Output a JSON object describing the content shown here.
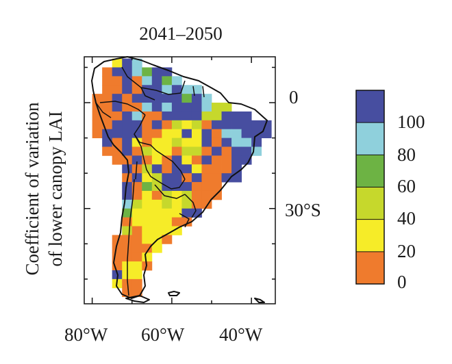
{
  "title": "2041–2050",
  "ylabel_lines": [
    "Coefficient of variation",
    "of lower canopy LAI"
  ],
  "lon_ticks": [
    "80°W",
    "60°W",
    "40°W"
  ],
  "lat_ticks": [
    "0",
    "30°S"
  ],
  "colorbar": {
    "labels": [
      "100",
      "80",
      "60",
      "40",
      "20",
      "0"
    ],
    "bins": [
      {
        "range": "0-20",
        "color": "#ef7b2d"
      },
      {
        "range": "20-40",
        "color": "#f6ec28"
      },
      {
        "range": "40-60",
        "color": "#c6d82c"
      },
      {
        "range": "60-80",
        "color": "#6db344"
      },
      {
        "range": "80-100",
        "color": "#8fd0dc"
      },
      {
        "range": ">100",
        "color": "#474ea0"
      }
    ]
  },
  "map_extent": {
    "lon": [
      -82,
      -34
    ],
    "lat": [
      -57,
      13
    ]
  },
  "grid_resolution_deg": 2.5,
  "grid_cells": [
    {
      "lat": 11.25,
      "lon": -73.75,
      "v": 1
    },
    {
      "lat": 11.25,
      "lon": -71.25,
      "v": 5
    },
    {
      "lat": 11.25,
      "lon": -68.75,
      "v": 4
    },
    {
      "lat": 8.75,
      "lon": -76.25,
      "v": 0
    },
    {
      "lat": 8.75,
      "lon": -73.75,
      "v": 5
    },
    {
      "lat": 8.75,
      "lon": -71.25,
      "v": 5
    },
    {
      "lat": 8.75,
      "lon": -68.75,
      "v": 4
    },
    {
      "lat": 8.75,
      "lon": -66.25,
      "v": 3
    },
    {
      "lat": 8.75,
      "lon": -63.75,
      "v": 5
    },
    {
      "lat": 8.75,
      "lon": -61.25,
      "v": 5
    },
    {
      "lat": 6.25,
      "lon": -76.25,
      "v": 0
    },
    {
      "lat": 6.25,
      "lon": -73.75,
      "v": 0
    },
    {
      "lat": 6.25,
      "lon": -71.25,
      "v": 5
    },
    {
      "lat": 6.25,
      "lon": -68.75,
      "v": 0
    },
    {
      "lat": 6.25,
      "lon": -66.25,
      "v": 4
    },
    {
      "lat": 6.25,
      "lon": -63.75,
      "v": 5
    },
    {
      "lat": 6.25,
      "lon": -61.25,
      "v": 3
    },
    {
      "lat": 6.25,
      "lon": -58.75,
      "v": 4
    },
    {
      "lat": 3.75,
      "lon": -76.25,
      "v": 0
    },
    {
      "lat": 3.75,
      "lon": -73.75,
      "v": 0
    },
    {
      "lat": 3.75,
      "lon": -71.25,
      "v": 5
    },
    {
      "lat": 3.75,
      "lon": -68.75,
      "v": 0
    },
    {
      "lat": 3.75,
      "lon": -66.25,
      "v": 5
    },
    {
      "lat": 3.75,
      "lon": -63.75,
      "v": 5
    },
    {
      "lat": 3.75,
      "lon": -61.25,
      "v": 4
    },
    {
      "lat": 3.75,
      "lon": -58.75,
      "v": 5
    },
    {
      "lat": 3.75,
      "lon": -56.25,
      "v": 4
    },
    {
      "lat": 3.75,
      "lon": -53.75,
      "v": 4
    },
    {
      "lat": 1.25,
      "lon": -78.75,
      "v": 0
    },
    {
      "lat": 1.25,
      "lon": -76.25,
      "v": 0
    },
    {
      "lat": 1.25,
      "lon": -73.75,
      "v": 5
    },
    {
      "lat": 1.25,
      "lon": -71.25,
      "v": 0
    },
    {
      "lat": 1.25,
      "lon": -68.75,
      "v": 5
    },
    {
      "lat": 1.25,
      "lon": -66.25,
      "v": 5
    },
    {
      "lat": 1.25,
      "lon": -63.75,
      "v": 5
    },
    {
      "lat": 1.25,
      "lon": -61.25,
      "v": 5
    },
    {
      "lat": 1.25,
      "lon": -58.75,
      "v": 5
    },
    {
      "lat": 1.25,
      "lon": -56.25,
      "v": 3
    },
    {
      "lat": 1.25,
      "lon": -53.75,
      "v": 5
    },
    {
      "lat": 1.25,
      "lon": -51.25,
      "v": 4
    },
    {
      "lat": -1.25,
      "lon": -78.75,
      "v": 0
    },
    {
      "lat": -1.25,
      "lon": -76.25,
      "v": 0
    },
    {
      "lat": -1.25,
      "lon": -73.75,
      "v": 5
    },
    {
      "lat": -1.25,
      "lon": -71.25,
      "v": 0
    },
    {
      "lat": -1.25,
      "lon": -68.75,
      "v": 0
    },
    {
      "lat": -1.25,
      "lon": -66.25,
      "v": 4
    },
    {
      "lat": -1.25,
      "lon": -63.75,
      "v": 5
    },
    {
      "lat": -1.25,
      "lon": -61.25,
      "v": 4
    },
    {
      "lat": -1.25,
      "lon": -58.75,
      "v": 5
    },
    {
      "lat": -1.25,
      "lon": -56.25,
      "v": 5
    },
    {
      "lat": -1.25,
      "lon": -53.75,
      "v": 5
    },
    {
      "lat": -1.25,
      "lon": -51.25,
      "v": 4
    },
    {
      "lat": -1.25,
      "lon": -48.75,
      "v": 2
    },
    {
      "lat": -1.25,
      "lon": -46.25,
      "v": 2
    },
    {
      "lat": -3.75,
      "lon": -78.75,
      "v": 0
    },
    {
      "lat": -3.75,
      "lon": -76.25,
      "v": 0
    },
    {
      "lat": -3.75,
      "lon": -73.75,
      "v": 0
    },
    {
      "lat": -3.75,
      "lon": -71.25,
      "v": 5
    },
    {
      "lat": -3.75,
      "lon": -68.75,
      "v": 4
    },
    {
      "lat": -3.75,
      "lon": -66.25,
      "v": 0
    },
    {
      "lat": -3.75,
      "lon": -63.75,
      "v": 0
    },
    {
      "lat": -3.75,
      "lon": -61.25,
      "v": 5
    },
    {
      "lat": -3.75,
      "lon": -58.75,
      "v": 5
    },
    {
      "lat": -3.75,
      "lon": -56.25,
      "v": 5
    },
    {
      "lat": -3.75,
      "lon": -53.75,
      "v": 5
    },
    {
      "lat": -3.75,
      "lon": -51.25,
      "v": 2
    },
    {
      "lat": -3.75,
      "lon": -48.75,
      "v": 2
    },
    {
      "lat": -3.75,
      "lon": -46.25,
      "v": 5
    },
    {
      "lat": -3.75,
      "lon": -43.75,
      "v": 5
    },
    {
      "lat": -3.75,
      "lon": -41.25,
      "v": 5
    },
    {
      "lat": -6.25,
      "lon": -78.75,
      "v": 0
    },
    {
      "lat": -6.25,
      "lon": -76.25,
      "v": 0
    },
    {
      "lat": -6.25,
      "lon": -73.75,
      "v": 5
    },
    {
      "lat": -6.25,
      "lon": -71.25,
      "v": 5
    },
    {
      "lat": -6.25,
      "lon": -68.75,
      "v": 5
    },
    {
      "lat": -6.25,
      "lon": -66.25,
      "v": 0
    },
    {
      "lat": -6.25,
      "lon": -63.75,
      "v": 5
    },
    {
      "lat": -6.25,
      "lon": -61.25,
      "v": 0
    },
    {
      "lat": -6.25,
      "lon": -58.75,
      "v": 2
    },
    {
      "lat": -6.25,
      "lon": -56.25,
      "v": 1
    },
    {
      "lat": -6.25,
      "lon": -53.75,
      "v": 2
    },
    {
      "lat": -6.25,
      "lon": -51.25,
      "v": 0
    },
    {
      "lat": -6.25,
      "lon": -48.75,
      "v": 5
    },
    {
      "lat": -6.25,
      "lon": -46.25,
      "v": 5
    },
    {
      "lat": -6.25,
      "lon": -43.75,
      "v": 5
    },
    {
      "lat": -6.25,
      "lon": -41.25,
      "v": 5
    },
    {
      "lat": -6.25,
      "lon": -38.75,
      "v": 5
    },
    {
      "lat": -6.25,
      "lon": -36.25,
      "v": 5
    },
    {
      "lat": -8.75,
      "lon": -78.75,
      "v": 0
    },
    {
      "lat": -8.75,
      "lon": -76.25,
      "v": 5
    },
    {
      "lat": -8.75,
      "lon": -73.75,
      "v": 5
    },
    {
      "lat": -8.75,
      "lon": -71.25,
      "v": 5
    },
    {
      "lat": -8.75,
      "lon": -68.75,
      "v": 5
    },
    {
      "lat": -8.75,
      "lon": -66.25,
      "v": 0
    },
    {
      "lat": -8.75,
      "lon": -63.75,
      "v": 0
    },
    {
      "lat": -8.75,
      "lon": -61.25,
      "v": 1
    },
    {
      "lat": -8.75,
      "lon": -58.75,
      "v": 1
    },
    {
      "lat": -8.75,
      "lon": -56.25,
      "v": 5
    },
    {
      "lat": -8.75,
      "lon": -53.75,
      "v": 1
    },
    {
      "lat": -8.75,
      "lon": -51.25,
      "v": 5
    },
    {
      "lat": -8.75,
      "lon": -48.75,
      "v": 0
    },
    {
      "lat": -8.75,
      "lon": -46.25,
      "v": 4
    },
    {
      "lat": -8.75,
      "lon": -43.75,
      "v": 4
    },
    {
      "lat": -8.75,
      "lon": -41.25,
      "v": 5
    },
    {
      "lat": -8.75,
      "lon": -38.75,
      "v": 5
    },
    {
      "lat": -8.75,
      "lon": -36.25,
      "v": 5
    },
    {
      "lat": -11.25,
      "lon": -76.25,
      "v": 5
    },
    {
      "lat": -11.25,
      "lon": -73.75,
      "v": 0
    },
    {
      "lat": -11.25,
      "lon": -71.25,
      "v": 5
    },
    {
      "lat": -11.25,
      "lon": -68.75,
      "v": 1
    },
    {
      "lat": -11.25,
      "lon": -66.25,
      "v": 0
    },
    {
      "lat": -11.25,
      "lon": -63.75,
      "v": 1
    },
    {
      "lat": -11.25,
      "lon": -61.25,
      "v": 1
    },
    {
      "lat": -11.25,
      "lon": -58.75,
      "v": 2
    },
    {
      "lat": -11.25,
      "lon": -56.25,
      "v": 1
    },
    {
      "lat": -11.25,
      "lon": -53.75,
      "v": 1
    },
    {
      "lat": -11.25,
      "lon": -51.25,
      "v": 5
    },
    {
      "lat": -11.25,
      "lon": -48.75,
      "v": 0
    },
    {
      "lat": -11.25,
      "lon": -46.25,
      "v": 5
    },
    {
      "lat": -11.25,
      "lon": -43.75,
      "v": 4
    },
    {
      "lat": -11.25,
      "lon": -41.25,
      "v": 4
    },
    {
      "lat": -11.25,
      "lon": -38.75,
      "v": 5
    },
    {
      "lat": -13.75,
      "lon": -76.25,
      "v": 0
    },
    {
      "lat": -13.75,
      "lon": -73.75,
      "v": 0
    },
    {
      "lat": -13.75,
      "lon": -71.25,
      "v": 5
    },
    {
      "lat": -13.75,
      "lon": -68.75,
      "v": 0
    },
    {
      "lat": -13.75,
      "lon": -66.25,
      "v": 2
    },
    {
      "lat": -13.75,
      "lon": -63.75,
      "v": 1
    },
    {
      "lat": -13.75,
      "lon": -61.25,
      "v": 1
    },
    {
      "lat": -13.75,
      "lon": -58.75,
      "v": 0
    },
    {
      "lat": -13.75,
      "lon": -56.25,
      "v": 2
    },
    {
      "lat": -13.75,
      "lon": -53.75,
      "v": 2
    },
    {
      "lat": -13.75,
      "lon": -51.25,
      "v": 0
    },
    {
      "lat": -13.75,
      "lon": -48.75,
      "v": 5
    },
    {
      "lat": -13.75,
      "lon": -46.25,
      "v": 0
    },
    {
      "lat": -13.75,
      "lon": -43.75,
      "v": 5
    },
    {
      "lat": -13.75,
      "lon": -41.25,
      "v": 5
    },
    {
      "lat": -13.75,
      "lon": -38.75,
      "v": 4
    },
    {
      "lat": -16.25,
      "lon": -73.75,
      "v": 0
    },
    {
      "lat": -16.25,
      "lon": -71.25,
      "v": 0
    },
    {
      "lat": -16.25,
      "lon": -68.75,
      "v": 5
    },
    {
      "lat": -16.25,
      "lon": -66.25,
      "v": 0
    },
    {
      "lat": -16.25,
      "lon": -63.75,
      "v": 1
    },
    {
      "lat": -16.25,
      "lon": -61.25,
      "v": 0
    },
    {
      "lat": -16.25,
      "lon": -58.75,
      "v": 5
    },
    {
      "lat": -16.25,
      "lon": -56.25,
      "v": 1
    },
    {
      "lat": -16.25,
      "lon": -53.75,
      "v": 0
    },
    {
      "lat": -16.25,
      "lon": -51.25,
      "v": 5
    },
    {
      "lat": -16.25,
      "lon": -48.75,
      "v": 0
    },
    {
      "lat": -16.25,
      "lon": -46.25,
      "v": 0
    },
    {
      "lat": -16.25,
      "lon": -43.75,
      "v": 5
    },
    {
      "lat": -16.25,
      "lon": -41.25,
      "v": 5
    },
    {
      "lat": -18.75,
      "lon": -71.25,
      "v": 5
    },
    {
      "lat": -18.75,
      "lon": -68.75,
      "v": 0
    },
    {
      "lat": -18.75,
      "lon": -66.25,
      "v": 2
    },
    {
      "lat": -18.75,
      "lon": -63.75,
      "v": 5
    },
    {
      "lat": -18.75,
      "lon": -61.25,
      "v": 0
    },
    {
      "lat": -18.75,
      "lon": -58.75,
      "v": 5
    },
    {
      "lat": -18.75,
      "lon": -56.25,
      "v": 5
    },
    {
      "lat": -18.75,
      "lon": -53.75,
      "v": 1
    },
    {
      "lat": -18.75,
      "lon": -51.25,
      "v": 0
    },
    {
      "lat": -18.75,
      "lon": -48.75,
      "v": 0
    },
    {
      "lat": -18.75,
      "lon": -46.25,
      "v": 0
    },
    {
      "lat": -18.75,
      "lon": -43.75,
      "v": 5
    },
    {
      "lat": -21.25,
      "lon": -71.25,
      "v": 0
    },
    {
      "lat": -21.25,
      "lon": -68.75,
      "v": 5
    },
    {
      "lat": -21.25,
      "lon": -66.25,
      "v": 1
    },
    {
      "lat": -21.25,
      "lon": -63.75,
      "v": 2
    },
    {
      "lat": -21.25,
      "lon": -61.25,
      "v": 5
    },
    {
      "lat": -21.25,
      "lon": -58.75,
      "v": 5
    },
    {
      "lat": -21.25,
      "lon": -56.25,
      "v": 0
    },
    {
      "lat": -21.25,
      "lon": -53.75,
      "v": 5
    },
    {
      "lat": -21.25,
      "lon": -51.25,
      "v": 0
    },
    {
      "lat": -21.25,
      "lon": -48.75,
      "v": 0
    },
    {
      "lat": -21.25,
      "lon": -46.25,
      "v": 5
    },
    {
      "lat": -21.25,
      "lon": -43.75,
      "v": 5
    },
    {
      "lat": -23.75,
      "lon": -71.25,
      "v": 5
    },
    {
      "lat": -23.75,
      "lon": -68.75,
      "v": 0
    },
    {
      "lat": -23.75,
      "lon": -66.25,
      "v": 3
    },
    {
      "lat": -23.75,
      "lon": -63.75,
      "v": 2
    },
    {
      "lat": -23.75,
      "lon": -61.25,
      "v": 5
    },
    {
      "lat": -23.75,
      "lon": -58.75,
      "v": 5
    },
    {
      "lat": -23.75,
      "lon": -56.25,
      "v": 5
    },
    {
      "lat": -23.75,
      "lon": -53.75,
      "v": 0
    },
    {
      "lat": -23.75,
      "lon": -51.25,
      "v": 0
    },
    {
      "lat": -23.75,
      "lon": -48.75,
      "v": 0
    },
    {
      "lat": -26.25,
      "lon": -71.25,
      "v": 5
    },
    {
      "lat": -26.25,
      "lon": -68.75,
      "v": 0
    },
    {
      "lat": -26.25,
      "lon": -66.25,
      "v": 1
    },
    {
      "lat": -26.25,
      "lon": -63.75,
      "v": 0
    },
    {
      "lat": -26.25,
      "lon": -61.25,
      "v": 2
    },
    {
      "lat": -26.25,
      "lon": -58.75,
      "v": 1
    },
    {
      "lat": -26.25,
      "lon": -56.25,
      "v": 2
    },
    {
      "lat": -26.25,
      "lon": -53.75,
      "v": 0
    },
    {
      "lat": -26.25,
      "lon": -51.25,
      "v": 0
    },
    {
      "lat": -26.25,
      "lon": -48.75,
      "v": 0
    },
    {
      "lat": -28.75,
      "lon": -71.25,
      "v": 4
    },
    {
      "lat": -28.75,
      "lon": -68.75,
      "v": 2
    },
    {
      "lat": -28.75,
      "lon": -66.25,
      "v": 1
    },
    {
      "lat": -28.75,
      "lon": -63.75,
      "v": 1
    },
    {
      "lat": -28.75,
      "lon": -61.25,
      "v": 2
    },
    {
      "lat": -28.75,
      "lon": -58.75,
      "v": 1
    },
    {
      "lat": -28.75,
      "lon": -56.25,
      "v": 2
    },
    {
      "lat": -28.75,
      "lon": -53.75,
      "v": 0
    },
    {
      "lat": -28.75,
      "lon": -51.25,
      "v": 0
    },
    {
      "lat": -31.25,
      "lon": -71.25,
      "v": 3
    },
    {
      "lat": -31.25,
      "lon": -68.75,
      "v": 1
    },
    {
      "lat": -31.25,
      "lon": -66.25,
      "v": 1
    },
    {
      "lat": -31.25,
      "lon": -63.75,
      "v": 1
    },
    {
      "lat": -31.25,
      "lon": -61.25,
      "v": 1
    },
    {
      "lat": -31.25,
      "lon": -58.75,
      "v": 1
    },
    {
      "lat": -31.25,
      "lon": -56.25,
      "v": 5
    },
    {
      "lat": -31.25,
      "lon": -53.75,
      "v": 5
    },
    {
      "lat": -33.75,
      "lon": -71.25,
      "v": 0
    },
    {
      "lat": -33.75,
      "lon": -68.75,
      "v": 1
    },
    {
      "lat": -33.75,
      "lon": -66.25,
      "v": 1
    },
    {
      "lat": -33.75,
      "lon": -63.75,
      "v": 1
    },
    {
      "lat": -33.75,
      "lon": -61.25,
      "v": 1
    },
    {
      "lat": -33.75,
      "lon": -58.75,
      "v": 0
    },
    {
      "lat": -33.75,
      "lon": -56.25,
      "v": 0
    },
    {
      "lat": -36.25,
      "lon": -71.25,
      "v": 2
    },
    {
      "lat": -36.25,
      "lon": -68.75,
      "v": 0
    },
    {
      "lat": -36.25,
      "lon": -66.25,
      "v": 1
    },
    {
      "lat": -36.25,
      "lon": -63.75,
      "v": 1
    },
    {
      "lat": -36.25,
      "lon": -61.25,
      "v": 1
    },
    {
      "lat": -36.25,
      "lon": -58.75,
      "v": 1
    },
    {
      "lat": -38.75,
      "lon": -73.75,
      "v": 0
    },
    {
      "lat": -38.75,
      "lon": -71.25,
      "v": 0
    },
    {
      "lat": -38.75,
      "lon": -68.75,
      "v": 0
    },
    {
      "lat": -38.75,
      "lon": -66.25,
      "v": 1
    },
    {
      "lat": -38.75,
      "lon": -63.75,
      "v": 1
    },
    {
      "lat": -38.75,
      "lon": -61.25,
      "v": 0
    },
    {
      "lat": -41.25,
      "lon": -73.75,
      "v": 0
    },
    {
      "lat": -41.25,
      "lon": -71.25,
      "v": 0
    },
    {
      "lat": -41.25,
      "lon": -68.75,
      "v": 0
    },
    {
      "lat": -41.25,
      "lon": -66.25,
      "v": 0
    },
    {
      "lat": -41.25,
      "lon": -63.75,
      "v": 1
    },
    {
      "lat": -43.75,
      "lon": -73.75,
      "v": 0
    },
    {
      "lat": -43.75,
      "lon": -71.25,
      "v": 0
    },
    {
      "lat": -43.75,
      "lon": -68.75,
      "v": 0
    },
    {
      "lat": -43.75,
      "lon": -66.25,
      "v": 1
    },
    {
      "lat": -46.25,
      "lon": -73.75,
      "v": 0
    },
    {
      "lat": -46.25,
      "lon": -71.25,
      "v": 1
    },
    {
      "lat": -46.25,
      "lon": -68.75,
      "v": 1
    },
    {
      "lat": -46.25,
      "lon": -66.25,
      "v": 0
    },
    {
      "lat": -48.75,
      "lon": -73.75,
      "v": 5
    },
    {
      "lat": -48.75,
      "lon": -71.25,
      "v": 1
    },
    {
      "lat": -48.75,
      "lon": -68.75,
      "v": 1
    },
    {
      "lat": -51.25,
      "lon": -73.75,
      "v": 1
    },
    {
      "lat": -51.25,
      "lon": -71.25,
      "v": 0
    },
    {
      "lat": -51.25,
      "lon": -68.75,
      "v": 0
    },
    {
      "lat": -53.75,
      "lon": -71.25,
      "v": 0
    },
    {
      "lat": -53.75,
      "lon": -68.75,
      "v": 0
    }
  ]
}
